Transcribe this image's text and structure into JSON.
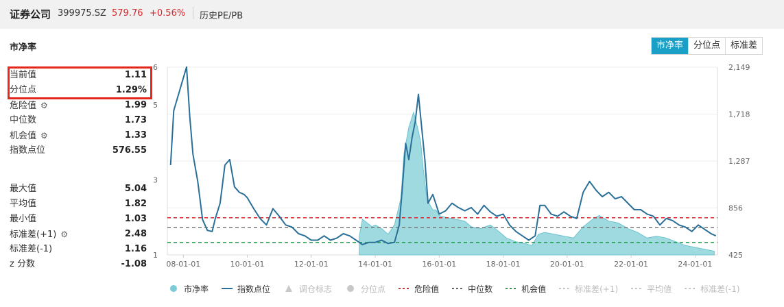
{
  "header": {
    "name": "证券公司",
    "code": "399975.SZ",
    "price": "579.76",
    "change": "+0.56%",
    "history_link": "历史PE/PB"
  },
  "panel": {
    "title": "市净率",
    "tabs": [
      "市净率",
      "分位点",
      "标准差"
    ],
    "active_tab": "市净率"
  },
  "stats": [
    {
      "label": "当前值",
      "value": "1.11",
      "gear": false
    },
    {
      "label": "分位点",
      "value": "1.29%",
      "gear": false
    },
    {
      "label": "危险值",
      "value": "1.99",
      "gear": true
    },
    {
      "label": "中位数",
      "value": "1.73",
      "gear": false
    },
    {
      "label": "机会值",
      "value": "1.33",
      "gear": true
    },
    {
      "label": "指数点位",
      "value": "576.55",
      "gear": false
    },
    {
      "label": "最大值",
      "value": "5.04",
      "gear": false
    },
    {
      "label": "平均值",
      "value": "1.82",
      "gear": false
    },
    {
      "label": "最小值",
      "value": "1.03",
      "gear": false
    },
    {
      "label": "标准差(+1)",
      "value": "2.48",
      "gear": true
    },
    {
      "label": "标准差(-1)",
      "value": "1.16",
      "gear": false
    },
    {
      "label": "z 分数",
      "value": "-1.08",
      "gear": false
    }
  ],
  "legend": [
    {
      "key": "pb",
      "label": "市净率",
      "color": "#7ccad6",
      "kind": "dot",
      "active": true
    },
    {
      "key": "idx",
      "label": "指数点位",
      "color": "#2a6f97",
      "kind": "line",
      "active": true
    },
    {
      "key": "adj",
      "label": "调仓标志",
      "color": "#c8c8c8",
      "kind": "triangle",
      "active": false
    },
    {
      "key": "pct",
      "label": "分位点",
      "color": "#c8c8c8",
      "kind": "dot",
      "active": false
    },
    {
      "key": "danger",
      "label": "危险值",
      "color": "#d9262b",
      "kind": "dash",
      "active": true
    },
    {
      "key": "median",
      "label": "中位数",
      "color": "#666666",
      "kind": "dash",
      "active": true
    },
    {
      "key": "opp",
      "label": "机会值",
      "color": "#1e9a4a",
      "kind": "dash",
      "active": true
    },
    {
      "key": "sdp",
      "label": "标准差(+1)",
      "color": "#c8c8c8",
      "kind": "dash",
      "active": false
    },
    {
      "key": "avg",
      "label": "平均值",
      "color": "#c8c8c8",
      "kind": "dash",
      "active": false
    },
    {
      "key": "sdm",
      "label": "标准差(-1)",
      "color": "#c8c8c8",
      "kind": "dash",
      "active": false
    }
  ],
  "chart_data": {
    "type": "line",
    "x_ticks": [
      "08-01-01",
      "10-01-01",
      "12-01-01",
      "14-01-01",
      "16-01-01",
      "18-01-01",
      "20-01-01",
      "22-01-01",
      "24-01-01"
    ],
    "y_left_ticks": [
      1,
      3,
      5,
      6
    ],
    "y_left_range": [
      1,
      6
    ],
    "y_right_ticks": [
      "425",
      "856",
      "1,287",
      "1,718",
      "2,149"
    ],
    "y_right_range": [
      425,
      2149
    ],
    "x_range_years": [
      2007.5,
      2024.7
    ],
    "reference_lines": {
      "danger": 1.99,
      "median": 1.73,
      "opportunity": 1.33
    },
    "series": [
      {
        "name": "市净率",
        "kind": "area",
        "x": [
          2013.5,
          2013.6,
          2013.75,
          2013.9,
          2014.0,
          2014.2,
          2014.4,
          2014.6,
          2014.8,
          2014.9,
          2015.05,
          2015.2,
          2015.35,
          2015.42,
          2015.5,
          2015.6,
          2015.7,
          2015.8,
          2015.9,
          2016.0,
          2016.2,
          2016.5,
          2016.8,
          2017.0,
          2017.3,
          2017.6,
          2017.9,
          2018.1,
          2018.4,
          2018.7,
          2018.9,
          2019.1,
          2019.3,
          2019.6,
          2019.9,
          2020.2,
          2020.5,
          2020.8,
          2021.0,
          2021.3,
          2021.6,
          2021.9,
          2022.2,
          2022.5,
          2022.8,
          2023.1,
          2023.4,
          2023.7,
          2024.0,
          2024.3,
          2024.6
        ],
        "y": [
          1.5,
          1.95,
          1.85,
          1.75,
          1.8,
          1.7,
          1.55,
          1.8,
          2.5,
          3.7,
          4.4,
          4.8,
          4.3,
          4.0,
          3.3,
          2.6,
          2.35,
          2.2,
          2.2,
          2.05,
          2.0,
          1.95,
          1.9,
          1.75,
          1.7,
          1.8,
          1.6,
          1.45,
          1.35,
          1.3,
          1.25,
          1.55,
          1.6,
          1.55,
          1.5,
          1.45,
          1.75,
          1.95,
          2.05,
          1.9,
          1.85,
          1.7,
          1.6,
          1.45,
          1.5,
          1.45,
          1.35,
          1.25,
          1.2,
          1.15,
          1.1
        ]
      },
      {
        "name": "指数点位",
        "kind": "line",
        "axis": "right",
        "x": [
          2007.6,
          2007.7,
          2007.85,
          2008.0,
          2008.1,
          2008.2,
          2008.3,
          2008.45,
          2008.6,
          2008.75,
          2008.9,
          2009.0,
          2009.15,
          2009.3,
          2009.45,
          2009.6,
          2009.75,
          2009.9,
          2010.0,
          2010.2,
          2010.4,
          2010.6,
          2010.8,
          2011.0,
          2011.2,
          2011.4,
          2011.6,
          2011.8,
          2012.0,
          2012.2,
          2012.4,
          2012.6,
          2012.8,
          2013.0,
          2013.2,
          2013.4,
          2013.6,
          2013.8,
          2014.0,
          2014.2,
          2014.4,
          2014.6,
          2014.75,
          2014.85,
          2014.95,
          2015.05,
          2015.15,
          2015.25,
          2015.35,
          2015.45,
          2015.55,
          2015.65,
          2015.8,
          2016.0,
          2016.2,
          2016.4,
          2016.6,
          2016.8,
          2017.0,
          2017.2,
          2017.4,
          2017.6,
          2017.8,
          2018.0,
          2018.2,
          2018.4,
          2018.6,
          2018.8,
          2019.0,
          2019.15,
          2019.3,
          2019.5,
          2019.7,
          2019.9,
          2020.1,
          2020.3,
          2020.5,
          2020.7,
          2020.9,
          2021.1,
          2021.3,
          2021.5,
          2021.7,
          2021.9,
          2022.1,
          2022.3,
          2022.5,
          2022.7,
          2022.9,
          2023.1,
          2023.3,
          2023.5,
          2023.7,
          2023.9,
          2024.1,
          2024.3,
          2024.5,
          2024.65
        ],
        "y": [
          1250,
          1750,
          1900,
          2050,
          2150,
          1700,
          1350,
          1100,
          750,
          650,
          640,
          760,
          900,
          1250,
          1300,
          1050,
          1000,
          980,
          950,
          850,
          760,
          700,
          850,
          780,
          700,
          680,
          620,
          600,
          560,
          560,
          600,
          560,
          580,
          620,
          600,
          560,
          520,
          540,
          540,
          560,
          530,
          540,
          700,
          1050,
          1450,
          1300,
          1500,
          1650,
          1900,
          1600,
          1300,
          900,
          980,
          800,
          830,
          900,
          860,
          830,
          860,
          800,
          880,
          820,
          780,
          800,
          700,
          640,
          600,
          560,
          600,
          880,
          880,
          800,
          780,
          820,
          780,
          760,
          1000,
          1100,
          1020,
          960,
          1000,
          940,
          960,
          900,
          840,
          840,
          800,
          780,
          700,
          760,
          740,
          700,
          680,
          640,
          700,
          660,
          620,
          600
        ]
      }
    ]
  }
}
